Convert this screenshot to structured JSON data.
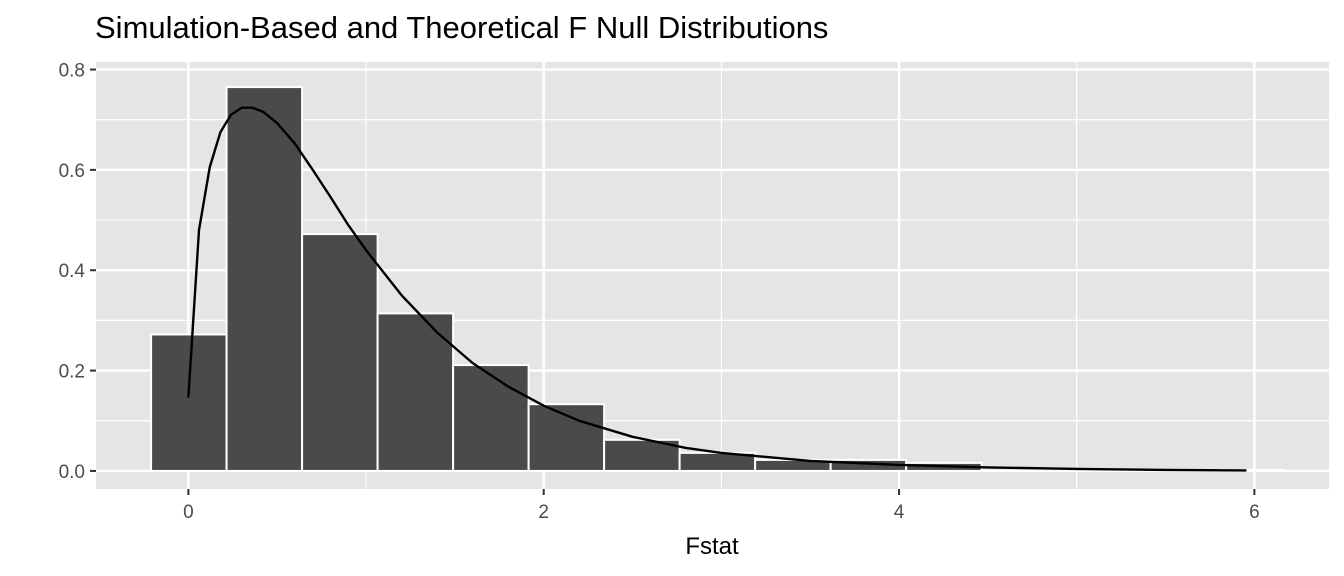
{
  "chart_data": {
    "type": "bar",
    "title": "Simulation-Based and Theoretical F Null Distributions",
    "xlabel": "Fstat",
    "ylabel": "",
    "xlim": [
      -0.52,
      6.42
    ],
    "ylim": [
      -0.036,
      0.815
    ],
    "x_ticks": [
      0,
      2,
      4,
      6
    ],
    "x_tick_labels": [
      "0",
      "2",
      "4",
      "6"
    ],
    "y_ticks": [
      0.0,
      0.2,
      0.4,
      0.6,
      0.8
    ],
    "y_tick_labels": [
      "0.0",
      "0.2",
      "0.4",
      "0.6",
      "0.8"
    ],
    "grid": true,
    "colors": {
      "panel_background": "#e5e5e5",
      "grid": "#ffffff",
      "bar_fill": "#4a4a4a",
      "bar_outline": "#ffffff",
      "curve": "#000000",
      "tick_text": "#4d4d4d"
    },
    "series": [
      {
        "kind": "histogram",
        "bin_width": 0.425,
        "bins": [
          {
            "x_start": -0.21,
            "x_end": 0.215,
            "density": 0.272
          },
          {
            "x_start": 0.215,
            "x_end": 0.64,
            "density": 0.765
          },
          {
            "x_start": 0.64,
            "x_end": 1.065,
            "density": 0.472
          },
          {
            "x_start": 1.065,
            "x_end": 1.49,
            "density": 0.314
          },
          {
            "x_start": 1.49,
            "x_end": 1.915,
            "density": 0.211
          },
          {
            "x_start": 1.915,
            "x_end": 2.34,
            "density": 0.133
          },
          {
            "x_start": 2.34,
            "x_end": 2.765,
            "density": 0.062
          },
          {
            "x_start": 2.765,
            "x_end": 3.19,
            "density": 0.036
          },
          {
            "x_start": 3.19,
            "x_end": 3.615,
            "density": 0.022
          },
          {
            "x_start": 3.615,
            "x_end": 4.04,
            "density": 0.022
          },
          {
            "x_start": 4.04,
            "x_end": 4.465,
            "density": 0.016
          },
          {
            "x_start": 4.465,
            "x_end": 4.89,
            "density": 0.0
          },
          {
            "x_start": 4.89,
            "x_end": 5.315,
            "density": 0.0
          },
          {
            "x_start": 5.315,
            "x_end": 5.74,
            "density": 0.0
          },
          {
            "x_start": 5.74,
            "x_end": 6.165,
            "density": 0.002
          }
        ]
      },
      {
        "kind": "line",
        "x": [
          0.0,
          0.06,
          0.12,
          0.18,
          0.24,
          0.3,
          0.36,
          0.42,
          0.5,
          0.6,
          0.7,
          0.8,
          0.9,
          1.0,
          1.2,
          1.4,
          1.6,
          1.8,
          2.0,
          2.2,
          2.5,
          2.8,
          3.0,
          3.5,
          4.0,
          4.5,
          5.0,
          5.5,
          5.95
        ],
        "y": [
          0.148,
          0.48,
          0.605,
          0.675,
          0.71,
          0.724,
          0.724,
          0.716,
          0.693,
          0.652,
          0.6,
          0.546,
          0.49,
          0.44,
          0.35,
          0.276,
          0.215,
          0.168,
          0.13,
          0.1,
          0.068,
          0.046,
          0.036,
          0.02,
          0.012,
          0.007,
          0.004,
          0.002,
          0.001
        ]
      }
    ]
  }
}
